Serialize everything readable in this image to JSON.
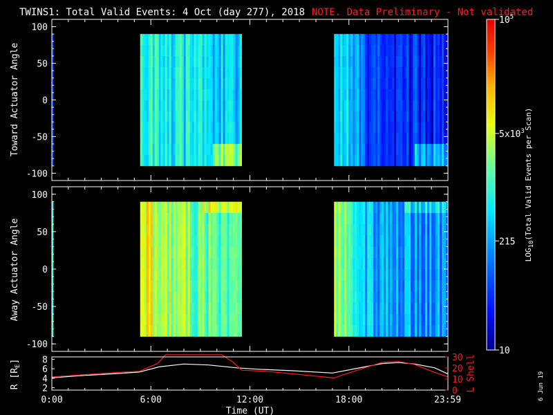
{
  "header": {
    "title": "TWINS1: Total Valid Events:  4 Oct (day 277), 2018",
    "warning": "NOTE. Data Preliminary - Not validated"
  },
  "footer": {
    "date_stamp": "6 Jun 19"
  },
  "colors": {
    "warning": "#ff1a1a",
    "axes": "#ffffff",
    "rshell": "#ffffff",
    "lshell": "#ff1a1a",
    "background": "#000000"
  },
  "chart_data": [
    {
      "type": "heatmap",
      "ylabel": "Toward Actuator Angle",
      "ylim": [
        -110,
        110
      ],
      "yticks": [
        "100",
        "50",
        "0",
        "-50",
        "-100"
      ],
      "x_range_hours": [
        0,
        24
      ],
      "data_blocks": [
        {
          "start": 0.0,
          "end": 0.08,
          "base": 0.22,
          "low_end_boost": 0.15
        },
        {
          "start": 5.35,
          "end": 11.5,
          "base": 0.45,
          "low_end_boost": 0.2
        },
        {
          "start": 17.1,
          "end": 24.0,
          "base": 0.18,
          "low_end_boost": 0.2
        }
      ]
    },
    {
      "type": "heatmap",
      "ylabel": "Away Actuator Angle",
      "ylim": [
        -110,
        110
      ],
      "yticks": [
        "100",
        "50",
        "0",
        "-50",
        "-100"
      ],
      "x_range_hours": [
        0,
        24
      ],
      "data_blocks": [
        {
          "start": 0.0,
          "end": 0.08,
          "base": 0.45,
          "low_end_boost": 0.0
        },
        {
          "start": 5.35,
          "end": 11.5,
          "base": 0.55,
          "low_end_boost": 0.0
        },
        {
          "start": 17.1,
          "end": 24.0,
          "base": 0.35,
          "low_end_boost": 0.0
        }
      ]
    },
    {
      "type": "line",
      "ylabel_left": "R [R",
      "ylabel_left_sub": "E",
      "ylabel_left_end": "]",
      "ylabel_right": "L Shell",
      "xlabel": "Time (UT)",
      "xticks": [
        "0:00",
        "6:00",
        "12:00",
        "18:00",
        "23:59"
      ],
      "x_hours": [
        0,
        6,
        12,
        18,
        23.98
      ],
      "yticks_left": [
        "8",
        "6",
        "4",
        "2"
      ],
      "yticks_right": [
        "30",
        "20",
        "10",
        "0"
      ],
      "ylim_left": [
        1.5,
        8.5
      ],
      "ylim_right": [
        0,
        30
      ],
      "series": [
        {
          "name": "",
          "axis": "left",
          "color": "#ffffff",
          "x": [
            0,
            2,
            4,
            5.3,
            6.5,
            8,
            9.5,
            11.2,
            12.5,
            14.5,
            17,
            18.5,
            20,
            21,
            22,
            23.2,
            24
          ],
          "y": [
            4.1,
            4.6,
            5.0,
            5.3,
            6.4,
            7.0,
            6.8,
            6.2,
            5.9,
            5.6,
            5.1,
            6.1,
            7.1,
            7.3,
            7.0,
            6.2,
            4.9
          ]
        },
        {
          "name": "",
          "axis": "right",
          "color": "#ff1a1a",
          "x": [
            0,
            2,
            4,
            5.3,
            6.4,
            6.9,
            10.3,
            11.0,
            11.5,
            13.0,
            17.1,
            18.5,
            20,
            21,
            22,
            23.2,
            24
          ],
          "y": [
            12,
            14,
            16,
            17,
            24,
            32,
            32,
            25,
            18,
            17,
            11,
            18,
            25,
            26,
            23,
            16,
            12
          ]
        }
      ]
    }
  ],
  "colorbar": {
    "label_pre": "LOG",
    "label_sub": "10",
    "label_post": "(Total Valid  Events per Scan)",
    "ticks": [
      {
        "base": "10",
        "exp": "5",
        "frac": 1.0
      },
      {
        "base": "5x10",
        "exp": "3",
        "frac": 0.655
      },
      {
        "base": "215",
        "exp": "",
        "frac": 0.33
      },
      {
        "base": "10",
        "exp": "",
        "frac": 0.0
      }
    ]
  }
}
